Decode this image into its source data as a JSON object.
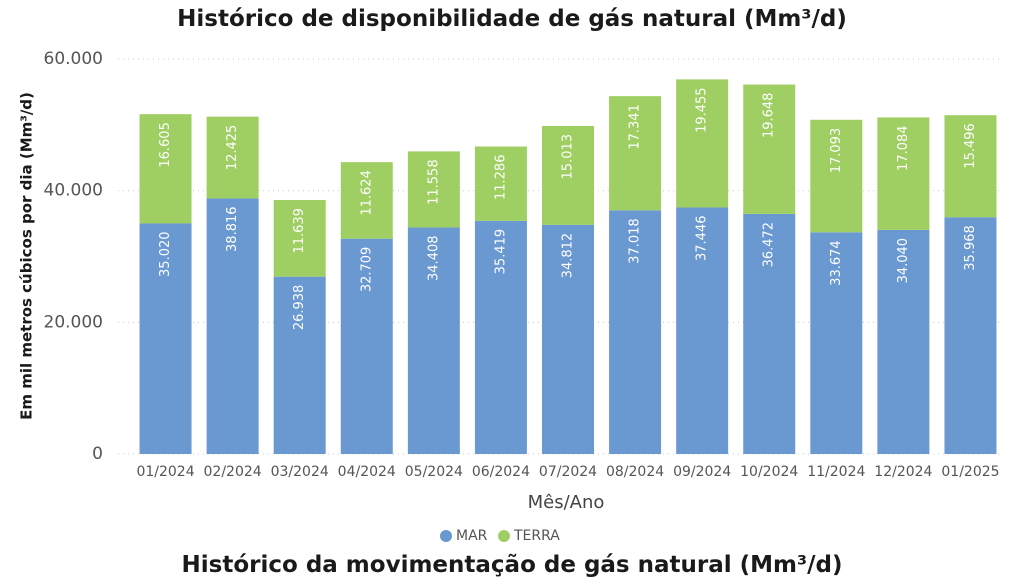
{
  "page": {
    "title": "Histórico de disponibilidade de gás natural (Mm³/d)",
    "subtitle_bottom": "Histórico da movimentação de gás natural (Mm³/d)"
  },
  "chart_data": {
    "type": "bar",
    "stacked": true,
    "title": "Histórico de disponibilidade de gás natural (Mm³/d)",
    "xlabel": "Mês/Ano",
    "ylabel": "Em mil metros cúbicos por dia (Mm³/d)",
    "ylim": [
      0,
      60000
    ],
    "yticks": [
      0,
      20000,
      40000,
      60000
    ],
    "ytick_labels": [
      "0",
      "20.000",
      "40.000",
      "60.000"
    ],
    "grid": true,
    "legend": "bottom-center",
    "categories": [
      "01/2024",
      "02/2024",
      "03/2024",
      "04/2024",
      "05/2024",
      "06/2024",
      "07/2024",
      "08/2024",
      "09/2024",
      "10/2024",
      "11/2024",
      "12/2024",
      "01/2025"
    ],
    "series": [
      {
        "name": "MAR",
        "color": "#6a98d1",
        "values": [
          35020,
          38816,
          26938,
          32709,
          34408,
          35419,
          34812,
          37018,
          37446,
          36472,
          33674,
          34040,
          35968
        ],
        "labels": [
          "35.020",
          "38.816",
          "26.938",
          "32.709",
          "34.408",
          "35.419",
          "34.812",
          "37.018",
          "37.446",
          "36.472",
          "33.674",
          "34.040",
          "35.968"
        ]
      },
      {
        "name": "TERRA",
        "color": "#9fcf63",
        "values": [
          16605,
          12425,
          11639,
          11624,
          11558,
          11286,
          15013,
          17341,
          19455,
          19648,
          17093,
          17084,
          15496
        ],
        "labels": [
          "16.605",
          "12.425",
          "11.639",
          "11.624",
          "11.558",
          "11.286",
          "15.013",
          "17.341",
          "19.455",
          "19.648",
          "17.093",
          "17.084",
          "15.496"
        ]
      }
    ]
  }
}
